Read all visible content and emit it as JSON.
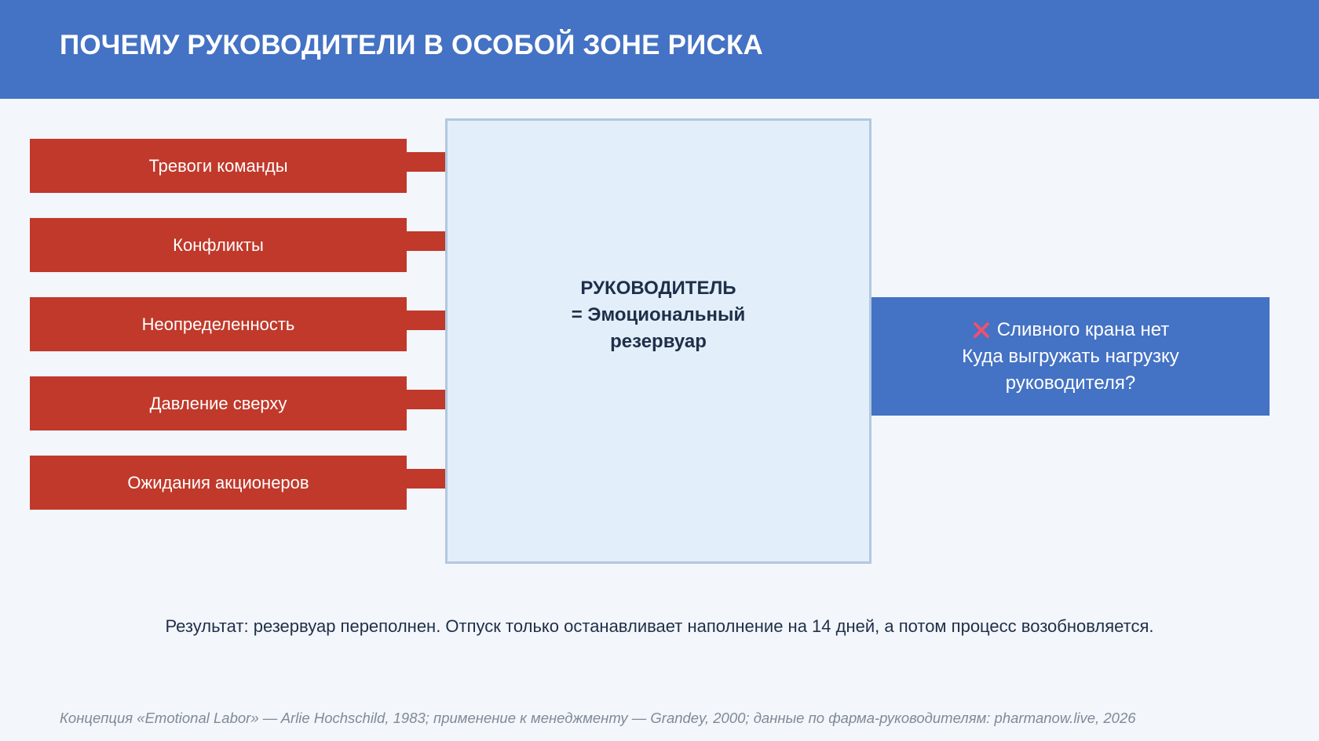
{
  "header": {
    "title": "ПОЧЕМУ РУКОВОДИТЕЛИ В ОСОБОЙ ЗОНЕ РИСКА",
    "background": "#4472c4"
  },
  "inputs": [
    "Тревоги команды",
    "Конфликты",
    "Неопределенность",
    "Давление сверху",
    "Ожидания акционеров"
  ],
  "reservoir": {
    "line1": "РУКОВОДИТЕЛЬ",
    "line2": "= Эмоциональный",
    "line3": "резервуар"
  },
  "outlet": {
    "icon": "cross-mark-icon",
    "line1": "Сливного крана нет",
    "line2": "Куда выгружать нагрузку",
    "line3": "руководителя?"
  },
  "result": "Результат: резервуар переполнен. Отпуск только останавливает наполнение на 14 дней, а потом процесс возобновляется.",
  "source": "Концепция «Emotional Labor» — Arlie Hochschild, 1983; применение к менеджменту — Grandey, 2000; данные по фарма-руководителям: pharmanow.live, 2026",
  "colors": {
    "input": "#c0392b",
    "reservoir_fill": "#e2eef9",
    "reservoir_border": "#b2c8de",
    "outlet": "#4472c4",
    "cross": "#f0506e"
  }
}
